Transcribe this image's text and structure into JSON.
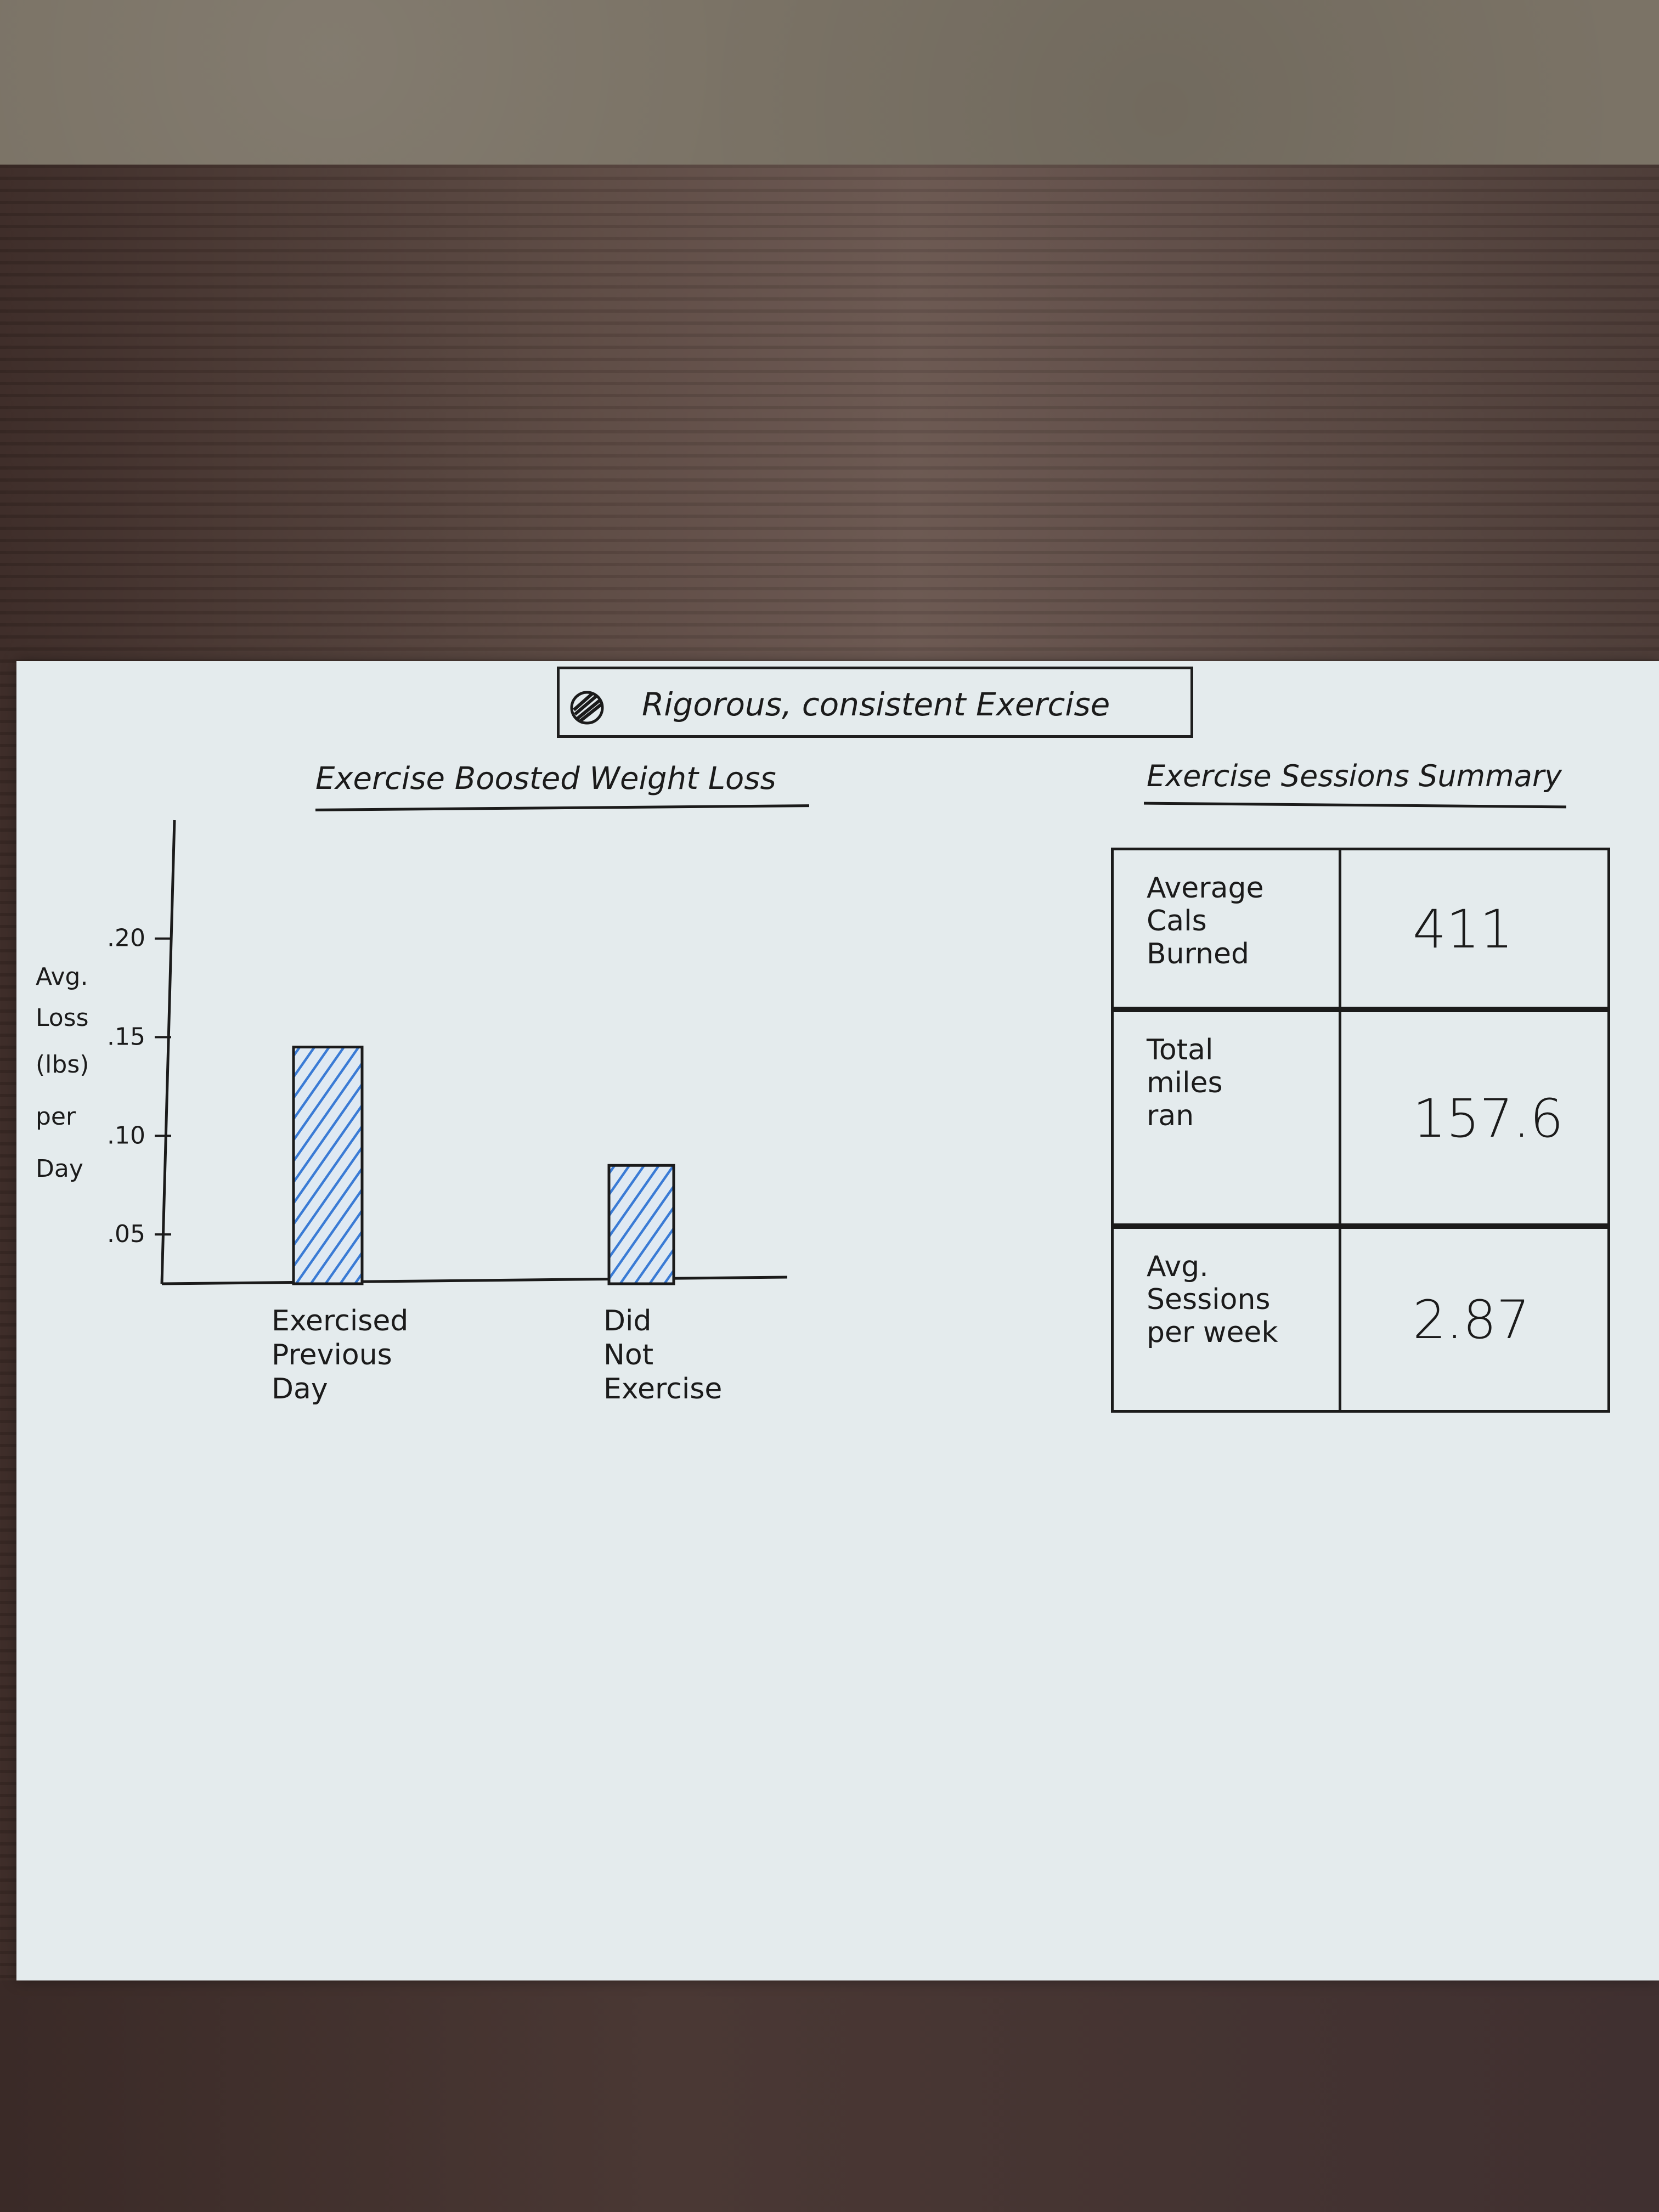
{
  "banner": {
    "text": "Rigorous, consistent Exercise",
    "icon": "scribbled-circle-icon"
  },
  "colors": {
    "bar_fill": "#3a7bd5",
    "ink": "#1b1b1b",
    "paper": "#e4ebed"
  },
  "chart_data": {
    "type": "bar",
    "title": "Exercise Boosted Weight Loss",
    "ylabel": [
      "Avg.",
      "Loss",
      "(lbs)",
      "per",
      "Day"
    ],
    "xlabel": "",
    "categories": [
      [
        "Exercised",
        "Previous",
        "Day"
      ],
      [
        "Did",
        "Not",
        "Exercise"
      ]
    ],
    "values": [
      0.145,
      0.085
    ],
    "yticks": [
      ".05",
      ".10",
      ".15",
      ".20"
    ],
    "ytick_values": [
      0.05,
      0.1,
      0.15,
      0.2
    ],
    "ylim": [
      0.025,
      0.26
    ],
    "grid": false,
    "legend": "none"
  },
  "summary": {
    "title": "Exercise Sessions Summary",
    "rows": [
      {
        "label": "Average\nCals\nBurned",
        "value": "411"
      },
      {
        "label": "Total\nmiles\nran",
        "value": "157.6"
      },
      {
        "label": "Avg.\nSessions\nper week",
        "value": "2.87"
      }
    ]
  }
}
